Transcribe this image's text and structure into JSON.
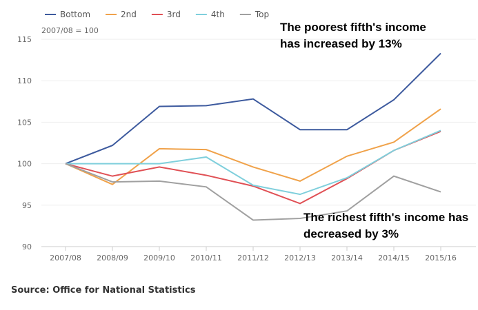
{
  "chart_data": {
    "type": "line",
    "subtitle": "2007/08 = 100",
    "categories": [
      "2007/08",
      "2008/09",
      "2009/10",
      "2010/11",
      "2011/12",
      "2012/13",
      "2013/14",
      "2014/15",
      "2015/16"
    ],
    "ylim": [
      90,
      115
    ],
    "yticks": [
      90,
      95,
      100,
      105,
      110,
      115
    ],
    "grid": true,
    "legend": "top-left",
    "series": [
      {
        "name": "Bottom",
        "color": "#3d5a9e",
        "values": [
          100,
          102.2,
          106.9,
          107.0,
          107.8,
          104.1,
          104.1,
          107.7,
          113.3
        ]
      },
      {
        "name": "2nd",
        "color": "#f0a24a",
        "values": [
          100,
          97.5,
          101.8,
          101.7,
          99.6,
          97.9,
          100.9,
          102.6,
          106.6
        ]
      },
      {
        "name": "3rd",
        "color": "#e05055",
        "values": [
          100,
          98.5,
          99.6,
          98.6,
          97.3,
          95.2,
          98.2,
          101.6,
          103.9
        ]
      },
      {
        "name": "4th",
        "color": "#7fcfdc",
        "values": [
          100,
          100,
          100,
          100.8,
          97.4,
          96.3,
          98.3,
          101.6,
          104.0
        ]
      },
      {
        "name": "Top",
        "color": "#a0a0a0",
        "values": [
          100,
          97.8,
          97.9,
          97.2,
          93.2,
          93.4,
          94.3,
          98.5,
          96.6
        ]
      }
    ],
    "annotations": [
      "The poorest fifth's income has increased by 13%",
      "The richest fifth's income has decreased by 3%"
    ]
  },
  "source": "Source: Office for National Statistics"
}
